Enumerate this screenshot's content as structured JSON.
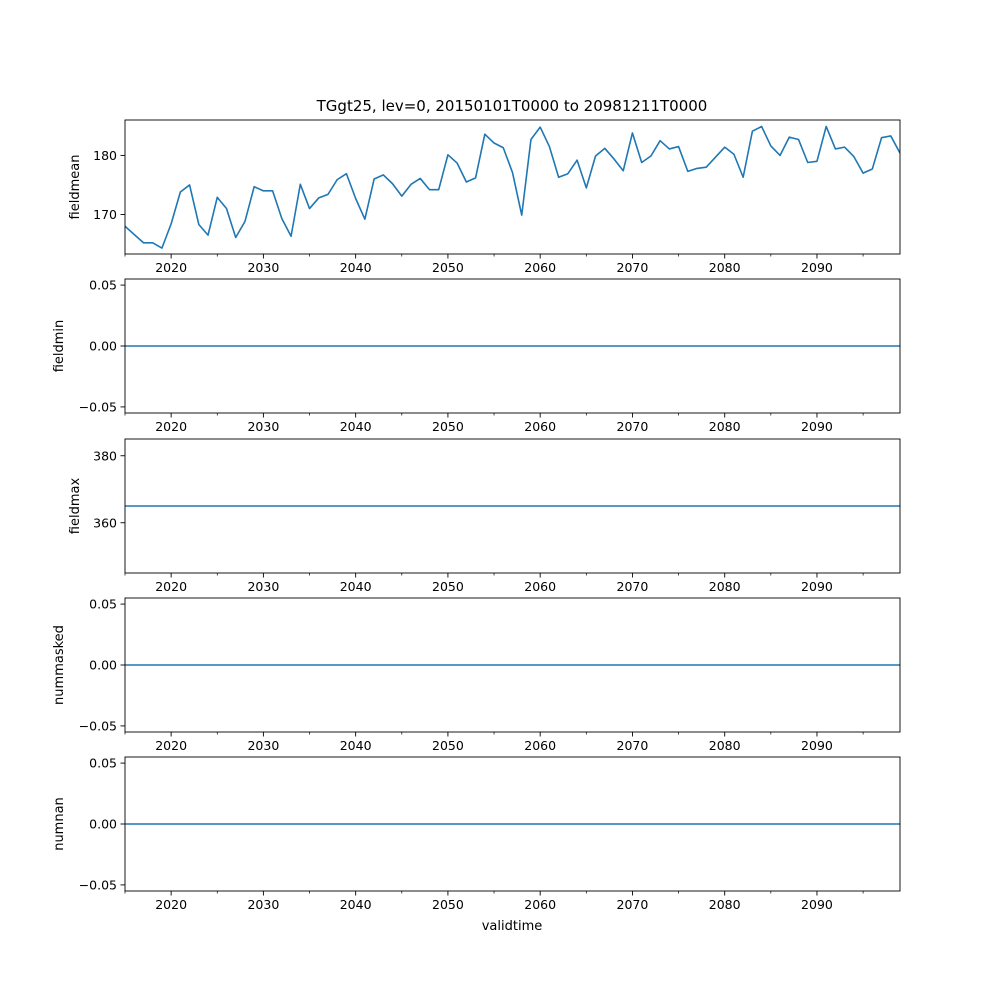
{
  "figure": {
    "title": "TGgt25, lev=0, 20150101T0000 to 20981211T0000",
    "xlabel": "validtime"
  },
  "chart_data": [
    {
      "type": "line",
      "ylabel": "fieldmean",
      "xlim": [
        2015,
        2099
      ],
      "ylim": [
        163.3,
        186.0
      ],
      "xticks": [
        2020,
        2030,
        2040,
        2050,
        2060,
        2070,
        2080,
        2090
      ],
      "yticks": [
        170,
        180
      ],
      "ytick_labels": [
        "170",
        "180"
      ],
      "x": [
        2015,
        2016,
        2017,
        2018,
        2019,
        2020,
        2021,
        2022,
        2023,
        2024,
        2025,
        2026,
        2027,
        2028,
        2029,
        2030,
        2031,
        2032,
        2033,
        2034,
        2035,
        2036,
        2037,
        2038,
        2039,
        2040,
        2041,
        2042,
        2043,
        2044,
        2045,
        2046,
        2047,
        2048,
        2049,
        2050,
        2051,
        2052,
        2053,
        2054,
        2055,
        2056,
        2057,
        2058,
        2059,
        2060,
        2061,
        2062,
        2063,
        2064,
        2065,
        2066,
        2067,
        2068,
        2069,
        2070,
        2071,
        2072,
        2073,
        2074,
        2075,
        2076,
        2077,
        2078,
        2079,
        2080,
        2081,
        2082,
        2083,
        2084,
        2085,
        2086,
        2087,
        2088,
        2089,
        2090,
        2091,
        2092,
        2093,
        2094,
        2095,
        2096,
        2097,
        2098,
        2099
      ],
      "values": [
        168.0,
        166.6,
        165.2,
        165.2,
        164.3,
        168.4,
        173.8,
        175.0,
        168.3,
        166.5,
        172.9,
        171.0,
        166.1,
        168.8,
        174.7,
        174.0,
        174.0,
        169.3,
        166.3,
        175.1,
        171.0,
        172.8,
        173.4,
        175.9,
        176.9,
        172.7,
        169.2,
        176.0,
        176.7,
        175.2,
        173.1,
        175.1,
        176.1,
        174.2,
        174.2,
        180.1,
        178.7,
        175.5,
        176.2,
        183.6,
        182.1,
        181.3,
        177.1,
        169.9,
        182.7,
        184.8,
        181.5,
        176.3,
        176.9,
        179.2,
        174.5,
        179.9,
        181.2,
        179.4,
        177.4,
        183.8,
        178.8,
        179.9,
        182.5,
        181.1,
        181.5,
        177.3,
        177.8,
        178.0,
        179.7,
        181.4,
        180.2,
        176.3,
        184.1,
        184.9,
        181.6,
        180.0,
        183.1,
        182.7,
        178.8,
        179.0,
        184.9,
        181.1,
        181.4,
        179.8,
        177.0,
        177.7,
        183.0,
        183.3,
        180.4
      ]
    },
    {
      "type": "line",
      "ylabel": "fieldmin",
      "xlim": [
        2015,
        2099
      ],
      "ylim": [
        -0.055,
        0.055
      ],
      "xticks": [
        2020,
        2030,
        2040,
        2050,
        2060,
        2070,
        2080,
        2090
      ],
      "yticks": [
        0.05,
        0.0,
        -0.05
      ],
      "ytick_labels": [
        "0.05",
        "0.00",
        "−0.05"
      ],
      "x": [
        2015,
        2099
      ],
      "values": [
        0.0,
        0.0
      ]
    },
    {
      "type": "line",
      "ylabel": "fieldmax",
      "xlim": [
        2015,
        2099
      ],
      "ylim": [
        345.0,
        385.0
      ],
      "xticks": [
        2020,
        2030,
        2040,
        2050,
        2060,
        2070,
        2080,
        2090
      ],
      "yticks": [
        380,
        360
      ],
      "ytick_labels": [
        "380",
        "360"
      ],
      "x": [
        2015,
        2099
      ],
      "values": [
        365.0,
        365.0
      ]
    },
    {
      "type": "line",
      "ylabel": "nummasked",
      "xlim": [
        2015,
        2099
      ],
      "ylim": [
        -0.055,
        0.055
      ],
      "xticks": [
        2020,
        2030,
        2040,
        2050,
        2060,
        2070,
        2080,
        2090
      ],
      "yticks": [
        0.05,
        0.0,
        -0.05
      ],
      "ytick_labels": [
        "0.05",
        "0.00",
        "−0.05"
      ],
      "x": [
        2015,
        2099
      ],
      "values": [
        0.0,
        0.0
      ]
    },
    {
      "type": "line",
      "ylabel": "numnan",
      "xlim": [
        2015,
        2099
      ],
      "ylim": [
        -0.055,
        0.055
      ],
      "xticks": [
        2020,
        2030,
        2040,
        2050,
        2060,
        2070,
        2080,
        2090
      ],
      "yticks": [
        0.05,
        0.0,
        -0.05
      ],
      "ytick_labels": [
        "0.05",
        "0.00",
        "−0.05"
      ],
      "x": [
        2015,
        2099
      ],
      "values": [
        0.0,
        0.0
      ]
    }
  ]
}
